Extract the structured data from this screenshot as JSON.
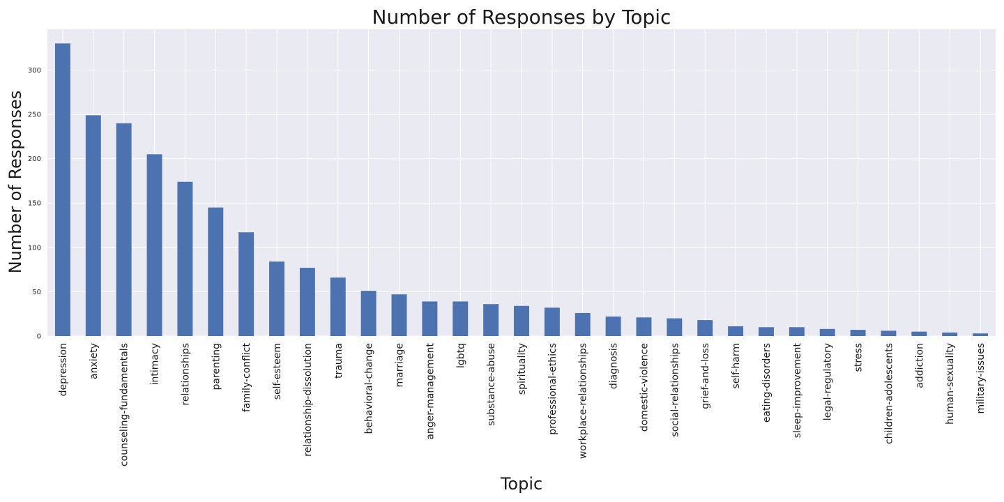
{
  "chart_data": {
    "type": "bar",
    "title": "Number of Responses by Topic",
    "xlabel": "Topic",
    "ylabel": "Number of Responses",
    "ylim": [
      0,
      346
    ],
    "yticks": [
      0,
      50,
      100,
      150,
      200,
      250,
      300
    ],
    "grid": true,
    "legend": "none",
    "colors": {
      "bar": "#4c72b0",
      "plot_bg": "#eaeaf2",
      "grid": "#ffffff"
    },
    "categories": [
      "depression",
      "anxiety",
      "counseling-fundamentals",
      "intimacy",
      "relationships",
      "parenting",
      "family-conflict",
      "self-esteem",
      "relationship-dissolution",
      "trauma",
      "behavioral-change",
      "marriage",
      "anger-management",
      "lgbtq",
      "substance-abuse",
      "spirituality",
      "professional-ethics",
      "workplace-relationships",
      "diagnosis",
      "domestic-violence",
      "social-relationships",
      "grief-and-loss",
      "self-harm",
      "eating-disorders",
      "sleep-improvement",
      "legal-regulatory",
      "stress",
      "children-adolescents",
      "addiction",
      "human-sexuality",
      "military-issues"
    ],
    "values": [
      330,
      249,
      240,
      205,
      174,
      145,
      117,
      84,
      77,
      66,
      51,
      47,
      39,
      39,
      36,
      34,
      32,
      26,
      22,
      21,
      20,
      18,
      11,
      10,
      10,
      8,
      7,
      6,
      5,
      4,
      3
    ]
  }
}
